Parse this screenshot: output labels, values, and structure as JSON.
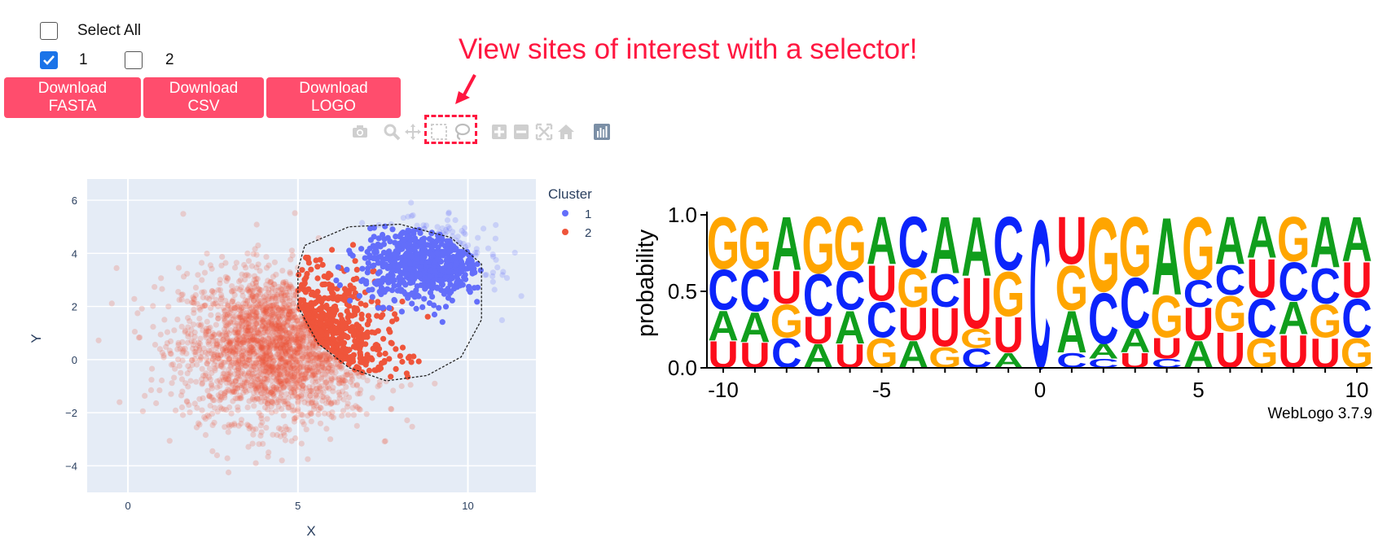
{
  "controls": {
    "select_all_label": "Select All",
    "cluster_checkboxes": [
      {
        "label": "1",
        "checked": true
      },
      {
        "label": "2",
        "checked": false
      }
    ],
    "select_all_checked": false
  },
  "buttons": [
    {
      "line1": "Download",
      "line2": "FASTA"
    },
    {
      "line1": "Download",
      "line2": "CSV"
    },
    {
      "line1": "Download",
      "line2": "LOGO"
    }
  ],
  "annotation": {
    "text": "View sites of interest with a selector!",
    "color": "#ff1740"
  },
  "modebar": {
    "icons": [
      "camera-icon",
      "zoom-icon",
      "pan-icon",
      "box-select-icon",
      "lasso-select-icon",
      "zoom-in-icon",
      "zoom-out-icon",
      "autoscale-icon",
      "reset-axes-icon",
      "plotly-logo-icon"
    ]
  },
  "chart_data": [
    {
      "type": "scatter",
      "title": "",
      "xlabel": "X",
      "ylabel": "Y",
      "xlim": [
        -1.2,
        12
      ],
      "ylim": [
        -5,
        6.8
      ],
      "x_ticks": [
        0,
        5,
        10
      ],
      "y_ticks": [
        -4,
        -2,
        0,
        2,
        4,
        6
      ],
      "x_tick_labels": [
        "0",
        "5",
        "10"
      ],
      "y_tick_labels": [
        "−4",
        "−2",
        "0",
        "2",
        "4",
        "6"
      ],
      "legend_title": "Cluster",
      "legend_position": "top-right",
      "series": [
        {
          "name": "1",
          "color": "#636efa",
          "center": [
            8.7,
            3.6
          ],
          "spread": [
            0.9,
            0.7
          ],
          "count": 700
        },
        {
          "name": "2",
          "color": "#ef553b",
          "center": [
            4.4,
            0.5
          ],
          "spread": [
            1.4,
            1.4
          ],
          "count": 2600
        }
      ],
      "lasso_selection": [
        [
          5.2,
          4.3
        ],
        [
          6.5,
          5.0
        ],
        [
          8.0,
          5.1
        ],
        [
          9.5,
          4.6
        ],
        [
          10.4,
          3.6
        ],
        [
          10.4,
          1.5
        ],
        [
          9.8,
          0.1
        ],
        [
          8.8,
          -0.6
        ],
        [
          7.6,
          -0.8
        ],
        [
          6.5,
          -0.3
        ],
        [
          5.6,
          0.6
        ],
        [
          5.0,
          2.0
        ],
        [
          5.0,
          3.4
        ]
      ]
    },
    {
      "type": "sequence-logo",
      "ylabel": "probability",
      "ylim": [
        0,
        1
      ],
      "y_ticks": [
        0.0,
        0.5,
        1.0
      ],
      "y_tick_labels": [
        "0.0",
        "0.5",
        "1.0"
      ],
      "x_ticks": [
        -10,
        -5,
        0,
        5,
        10
      ],
      "x_tick_labels": [
        "-10",
        "-5",
        "0",
        "5",
        "10"
      ],
      "footer": "WebLogo 3.7.9",
      "letter_colors": {
        "A": "#109e1c",
        "C": "#0b24fb",
        "G": "#ffa500",
        "U": "#fc0d1b"
      },
      "positions": [
        {
          "pos": -10,
          "stack": [
            [
              "U",
              0.18
            ],
            [
              "A",
              0.2
            ],
            [
              "C",
              0.27
            ],
            [
              "G",
              0.35
            ]
          ]
        },
        {
          "pos": -9,
          "stack": [
            [
              "U",
              0.17
            ],
            [
              "A",
              0.2
            ],
            [
              "C",
              0.28
            ],
            [
              "G",
              0.35
            ]
          ]
        },
        {
          "pos": -8,
          "stack": [
            [
              "C",
              0.2
            ],
            [
              "G",
              0.22
            ],
            [
              "U",
              0.22
            ],
            [
              "A",
              0.36
            ]
          ]
        },
        {
          "pos": -7,
          "stack": [
            [
              "A",
              0.16
            ],
            [
              "U",
              0.18
            ],
            [
              "C",
              0.28
            ],
            [
              "G",
              0.38
            ]
          ]
        },
        {
          "pos": -6,
          "stack": [
            [
              "U",
              0.16
            ],
            [
              "A",
              0.22
            ],
            [
              "C",
              0.26
            ],
            [
              "G",
              0.36
            ]
          ]
        },
        {
          "pos": -5,
          "stack": [
            [
              "G",
              0.2
            ],
            [
              "C",
              0.24
            ],
            [
              "U",
              0.24
            ],
            [
              "A",
              0.32
            ]
          ]
        },
        {
          "pos": -4,
          "stack": [
            [
              "A",
              0.18
            ],
            [
              "U",
              0.22
            ],
            [
              "G",
              0.26
            ],
            [
              "C",
              0.34
            ]
          ]
        },
        {
          "pos": -3,
          "stack": [
            [
              "G",
              0.14
            ],
            [
              "U",
              0.26
            ],
            [
              "C",
              0.22
            ],
            [
              "A",
              0.38
            ]
          ]
        },
        {
          "pos": -2,
          "stack": [
            [
              "C",
              0.13
            ],
            [
              "G",
              0.13
            ],
            [
              "U",
              0.34
            ],
            [
              "A",
              0.4
            ]
          ]
        },
        {
          "pos": -1,
          "stack": [
            [
              "A",
              0.1
            ],
            [
              "U",
              0.24
            ],
            [
              "G",
              0.3
            ],
            [
              "C",
              0.36
            ]
          ]
        },
        {
          "pos": 0,
          "stack": [
            [
              "C",
              1.0
            ]
          ]
        },
        {
          "pos": 1,
          "stack": [
            [
              "C",
              0.1
            ],
            [
              "A",
              0.28
            ],
            [
              "G",
              0.3
            ],
            [
              "U",
              0.32
            ]
          ]
        },
        {
          "pos": 2,
          "stack": [
            [
              "C",
              0.06
            ],
            [
              "A",
              0.1
            ],
            [
              "C",
              0.34
            ],
            [
              "G",
              0.5
            ]
          ]
        },
        {
          "pos": 3,
          "stack": [
            [
              "U",
              0.1
            ],
            [
              "A",
              0.16
            ],
            [
              "C",
              0.34
            ],
            [
              "G",
              0.4
            ]
          ]
        },
        {
          "pos": 4,
          "stack": [
            [
              "C",
              0.06
            ],
            [
              "U",
              0.14
            ],
            [
              "G",
              0.28
            ],
            [
              "A",
              0.52
            ]
          ]
        },
        {
          "pos": 5,
          "stack": [
            [
              "A",
              0.18
            ],
            [
              "U",
              0.22
            ],
            [
              "C",
              0.18
            ],
            [
              "G",
              0.42
            ]
          ]
        },
        {
          "pos": 6,
          "stack": [
            [
              "U",
              0.24
            ],
            [
              "G",
              0.24
            ],
            [
              "C",
              0.2
            ],
            [
              "A",
              0.32
            ]
          ]
        },
        {
          "pos": 7,
          "stack": [
            [
              "G",
              0.2
            ],
            [
              "C",
              0.26
            ],
            [
              "U",
              0.26
            ],
            [
              "A",
              0.28
            ]
          ]
        },
        {
          "pos": 8,
          "stack": [
            [
              "U",
              0.22
            ],
            [
              "A",
              0.22
            ],
            [
              "C",
              0.26
            ],
            [
              "G",
              0.3
            ]
          ]
        },
        {
          "pos": 9,
          "stack": [
            [
              "U",
              0.2
            ],
            [
              "G",
              0.22
            ],
            [
              "C",
              0.24
            ],
            [
              "A",
              0.34
            ]
          ]
        },
        {
          "pos": 10,
          "stack": [
            [
              "G",
              0.2
            ],
            [
              "C",
              0.26
            ],
            [
              "U",
              0.24
            ],
            [
              "A",
              0.3
            ]
          ]
        }
      ]
    }
  ]
}
